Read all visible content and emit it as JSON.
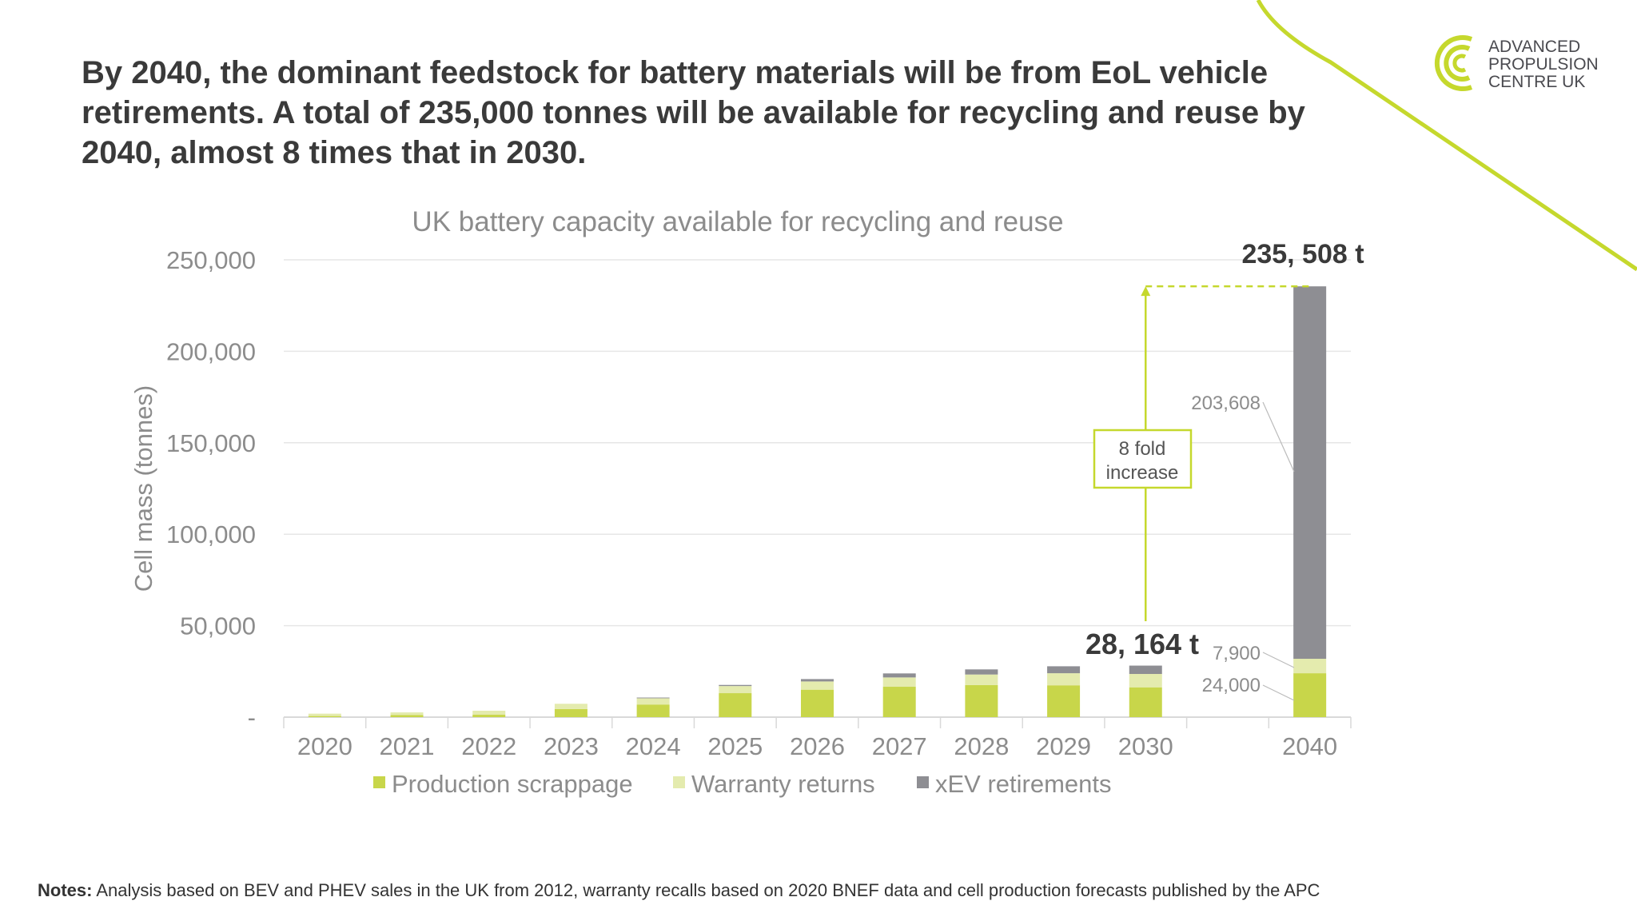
{
  "headline": "By 2040, the dominant feedstock for battery materials will be from EoL vehicle retirements. A total of 235,000 tonnes will be available for recycling and reuse by 2040, almost 8 times that in 2030.",
  "logo": {
    "lines": [
      "ADVANCED",
      "PROPULSION",
      "CENTRE UK"
    ],
    "icon": "apc-concentric-c-logo"
  },
  "notes": {
    "label": "Notes:",
    "text": " Analysis based on BEV and PHEV sales in the UK from 2012, warranty recalls based on 2020 BNEF data and cell production forecasts published by the APC"
  },
  "colors": {
    "production": "#c8d64a",
    "warranty": "#e4ebae",
    "xev": "#8e8e93",
    "accent": "#c5d82d",
    "text": "#3a3a3a",
    "axis": "#8c8c8c"
  },
  "chart_data": {
    "type": "bar",
    "stacked": true,
    "title": "UK battery capacity available for recycling and reuse",
    "ylabel": "Cell mass (tonnes)",
    "xlabel": "",
    "ylim": [
      0,
      250000
    ],
    "yticks": [
      0,
      50000,
      100000,
      150000,
      200000,
      250000
    ],
    "ytick_labels": [
      "-",
      "50,000",
      "100,000",
      "150,000",
      "200,000",
      "250,000"
    ],
    "grid": true,
    "legend": "bottom",
    "categories": [
      "2020",
      "2021",
      "2022",
      "2023",
      "2024",
      "2025",
      "2026",
      "2027",
      "2028",
      "2029",
      "2030",
      "",
      "2040"
    ],
    "series": [
      {
        "name": "Production scrappage",
        "values": [
          600,
          1200,
          1300,
          4400,
          6900,
          13100,
          15000,
          16600,
          17500,
          17400,
          16300,
          null,
          24000
        ]
      },
      {
        "name": "Warranty returns",
        "values": [
          1300,
          1400,
          2200,
          2900,
          3400,
          3900,
          4500,
          5100,
          5800,
          6600,
          7300,
          null,
          7900
        ]
      },
      {
        "name": "xEV retirements",
        "values": [
          0,
          0,
          0,
          0,
          400,
          600,
          1300,
          2200,
          2800,
          3800,
          4564,
          null,
          203608
        ]
      }
    ],
    "annotations": {
      "total_2040": "235, 508 t",
      "total_2030": "28, 164 t",
      "xev_2040": "203,608",
      "warranty_2040": "7,900",
      "production_2040": "24,000",
      "increase_box": [
        "8 fold",
        "increase"
      ]
    }
  }
}
